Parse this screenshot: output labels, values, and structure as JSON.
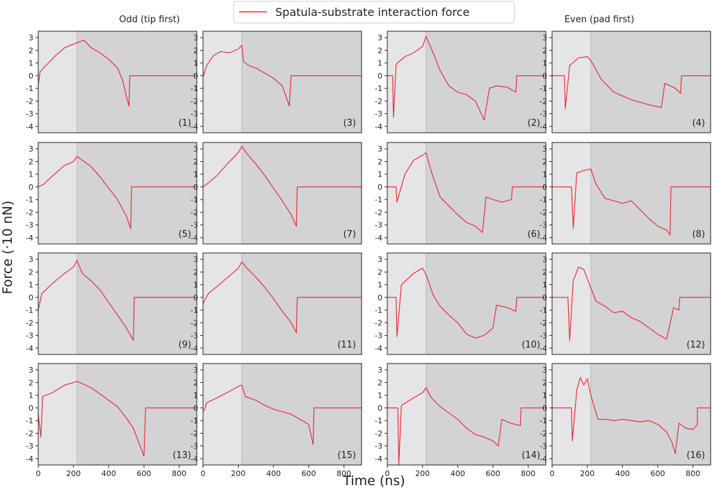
{
  "chart_data": {
    "type": "line",
    "legend": {
      "entries": [
        "Spatula-substrate interaction force"
      ],
      "placement": "top-center"
    },
    "column_titles": {
      "left": "Odd (tip first)",
      "right": "Even (pad first)"
    },
    "xlabel": "Time (ns)",
    "ylabel": "Force (·10 nN)",
    "xlim": [
      0,
      900
    ],
    "ylim": [
      -4.5,
      3.5
    ],
    "xticks": [
      0,
      200,
      400,
      600,
      800
    ],
    "yticks": [
      -4,
      -3,
      -2,
      -1,
      0,
      1,
      2,
      3
    ],
    "shaded_phase_boundary_ns": 220,
    "series_color": "#e8303a",
    "shade_light": "#e5e5e8",
    "shade_dark": "#d3d3d6",
    "panels": [
      {
        "label": "(1)",
        "end_time": 520,
        "points": [
          [
            0,
            -0.8
          ],
          [
            10,
            0.3
          ],
          [
            50,
            0.9
          ],
          [
            100,
            1.6
          ],
          [
            150,
            2.2
          ],
          [
            200,
            2.5
          ],
          [
            220,
            2.6
          ],
          [
            260,
            2.8
          ],
          [
            300,
            2.2
          ],
          [
            350,
            1.8
          ],
          [
            400,
            1.3
          ],
          [
            450,
            0.6
          ],
          [
            480,
            -0.4
          ],
          [
            500,
            -1.6
          ],
          [
            515,
            -2.4
          ],
          [
            520,
            0
          ]
        ]
      },
      {
        "label": "(3)",
        "end_time": 500,
        "points": [
          [
            0,
            -0.1
          ],
          [
            20,
            0.8
          ],
          [
            60,
            1.6
          ],
          [
            100,
            1.9
          ],
          [
            150,
            1.8
          ],
          [
            200,
            2.1
          ],
          [
            220,
            2.4
          ],
          [
            230,
            1.1
          ],
          [
            260,
            0.8
          ],
          [
            300,
            0.6
          ],
          [
            350,
            0.2
          ],
          [
            400,
            -0.2
          ],
          [
            450,
            -0.8
          ],
          [
            490,
            -2.4
          ],
          [
            500,
            0
          ]
        ]
      },
      {
        "label": "(2)",
        "end_time": 735,
        "points": [
          [
            0,
            0
          ],
          [
            30,
            0
          ],
          [
            35,
            -3.3
          ],
          [
            50,
            0.9
          ],
          [
            100,
            1.5
          ],
          [
            150,
            1.8
          ],
          [
            200,
            2.3
          ],
          [
            220,
            3.1
          ],
          [
            260,
            1.8
          ],
          [
            300,
            0.4
          ],
          [
            350,
            -0.8
          ],
          [
            400,
            -1.3
          ],
          [
            450,
            -1.5
          ],
          [
            500,
            -2.0
          ],
          [
            550,
            -3.5
          ],
          [
            580,
            -1.0
          ],
          [
            620,
            -0.8
          ],
          [
            680,
            -0.9
          ],
          [
            730,
            -1.3
          ],
          [
            735,
            0
          ]
        ]
      },
      {
        "label": "(4)",
        "end_time": 735,
        "points": [
          [
            0,
            0
          ],
          [
            70,
            0
          ],
          [
            75,
            -2.6
          ],
          [
            100,
            0.8
          ],
          [
            150,
            1.4
          ],
          [
            200,
            1.5
          ],
          [
            220,
            1.2
          ],
          [
            280,
            -0.3
          ],
          [
            350,
            -1.3
          ],
          [
            450,
            -1.9
          ],
          [
            550,
            -2.3
          ],
          [
            620,
            -2.5
          ],
          [
            640,
            -0.6
          ],
          [
            700,
            -1.0
          ],
          [
            730,
            -1.4
          ],
          [
            735,
            0
          ]
        ]
      },
      {
        "label": "(5)",
        "end_time": 530,
        "points": [
          [
            0,
            0
          ],
          [
            30,
            0.2
          ],
          [
            100,
            1.1
          ],
          [
            150,
            1.7
          ],
          [
            200,
            2.0
          ],
          [
            220,
            2.4
          ],
          [
            250,
            2.1
          ],
          [
            300,
            1.6
          ],
          [
            350,
            0.8
          ],
          [
            400,
            -0.1
          ],
          [
            450,
            -1.0
          ],
          [
            500,
            -2.3
          ],
          [
            525,
            -3.3
          ],
          [
            530,
            0
          ]
        ]
      },
      {
        "label": "(7)",
        "end_time": 535,
        "points": [
          [
            0,
            0
          ],
          [
            20,
            0.2
          ],
          [
            80,
            0.9
          ],
          [
            150,
            2.0
          ],
          [
            200,
            2.7
          ],
          [
            220,
            3.2
          ],
          [
            250,
            2.6
          ],
          [
            300,
            1.8
          ],
          [
            350,
            0.9
          ],
          [
            400,
            -0.1
          ],
          [
            450,
            -1.1
          ],
          [
            500,
            -2.2
          ],
          [
            530,
            -3.1
          ],
          [
            535,
            0
          ]
        ]
      },
      {
        "label": "(6)",
        "end_time": 710,
        "points": [
          [
            0,
            0
          ],
          [
            50,
            0
          ],
          [
            55,
            -1.2
          ],
          [
            100,
            1.0
          ],
          [
            150,
            2.1
          ],
          [
            200,
            2.5
          ],
          [
            220,
            2.7
          ],
          [
            250,
            1.2
          ],
          [
            300,
            -0.8
          ],
          [
            350,
            -1.5
          ],
          [
            400,
            -2.2
          ],
          [
            450,
            -2.8
          ],
          [
            500,
            -3.1
          ],
          [
            540,
            -3.6
          ],
          [
            560,
            -0.8
          ],
          [
            600,
            -1.0
          ],
          [
            650,
            -1.2
          ],
          [
            705,
            -1.0
          ],
          [
            710,
            0
          ]
        ]
      },
      {
        "label": "(8)",
        "end_time": 675,
        "points": [
          [
            0,
            0
          ],
          [
            110,
            0
          ],
          [
            120,
            -3.3
          ],
          [
            140,
            1.1
          ],
          [
            180,
            1.3
          ],
          [
            220,
            1.4
          ],
          [
            250,
            0.2
          ],
          [
            300,
            -0.9
          ],
          [
            350,
            -1.1
          ],
          [
            400,
            -1.3
          ],
          [
            450,
            -1.1
          ],
          [
            500,
            -1.8
          ],
          [
            550,
            -2.5
          ],
          [
            600,
            -3.1
          ],
          [
            650,
            -3.4
          ],
          [
            670,
            -3.8
          ],
          [
            675,
            0
          ]
        ]
      },
      {
        "label": "(9)",
        "end_time": 545,
        "points": [
          [
            0,
            -1.0
          ],
          [
            20,
            0.3
          ],
          [
            80,
            1.1
          ],
          [
            150,
            1.9
          ],
          [
            200,
            2.4
          ],
          [
            220,
            2.9
          ],
          [
            250,
            1.9
          ],
          [
            300,
            1.3
          ],
          [
            350,
            0.6
          ],
          [
            400,
            -0.4
          ],
          [
            450,
            -1.4
          ],
          [
            500,
            -2.4
          ],
          [
            540,
            -3.4
          ],
          [
            545,
            0
          ]
        ]
      },
      {
        "label": "(11)",
        "end_time": 535,
        "points": [
          [
            0,
            -0.5
          ],
          [
            30,
            0.3
          ],
          [
            100,
            1.1
          ],
          [
            150,
            1.7
          ],
          [
            200,
            2.3
          ],
          [
            220,
            2.8
          ],
          [
            250,
            2.3
          ],
          [
            300,
            1.6
          ],
          [
            350,
            0.8
          ],
          [
            400,
            -0.1
          ],
          [
            450,
            -1.1
          ],
          [
            500,
            -2.0
          ],
          [
            530,
            -2.8
          ],
          [
            535,
            0
          ]
        ]
      },
      {
        "label": "(10)",
        "end_time": 735,
        "points": [
          [
            0,
            0
          ],
          [
            50,
            0
          ],
          [
            55,
            -3.1
          ],
          [
            80,
            1.0
          ],
          [
            150,
            1.9
          ],
          [
            200,
            2.3
          ],
          [
            220,
            1.8
          ],
          [
            260,
            0.2
          ],
          [
            300,
            -0.7
          ],
          [
            350,
            -1.4
          ],
          [
            400,
            -2.0
          ],
          [
            450,
            -2.9
          ],
          [
            500,
            -3.2
          ],
          [
            550,
            -3.0
          ],
          [
            600,
            -2.4
          ],
          [
            620,
            -0.6
          ],
          [
            680,
            -0.8
          ],
          [
            730,
            -1.1
          ],
          [
            735,
            0
          ]
        ]
      },
      {
        "label": "(12)",
        "end_time": 725,
        "points": [
          [
            0,
            0
          ],
          [
            90,
            0
          ],
          [
            100,
            -3.4
          ],
          [
            120,
            1.3
          ],
          [
            150,
            2.4
          ],
          [
            180,
            2.2
          ],
          [
            210,
            1.1
          ],
          [
            250,
            -0.3
          ],
          [
            300,
            -0.7
          ],
          [
            350,
            -1.2
          ],
          [
            400,
            -1.1
          ],
          [
            450,
            -1.6
          ],
          [
            500,
            -1.9
          ],
          [
            550,
            -2.4
          ],
          [
            600,
            -2.9
          ],
          [
            650,
            -3.3
          ],
          [
            690,
            -0.8
          ],
          [
            720,
            -1.0
          ],
          [
            725,
            0
          ]
        ]
      },
      {
        "label": "(13)",
        "end_time": 610,
        "points": [
          [
            0,
            -0.5
          ],
          [
            15,
            -2.3
          ],
          [
            25,
            0.9
          ],
          [
            80,
            1.2
          ],
          [
            150,
            1.8
          ],
          [
            200,
            2.0
          ],
          [
            220,
            2.1
          ],
          [
            300,
            1.6
          ],
          [
            350,
            1.1
          ],
          [
            400,
            0.6
          ],
          [
            450,
            0.1
          ],
          [
            500,
            -0.8
          ],
          [
            540,
            -1.6
          ],
          [
            570,
            -2.7
          ],
          [
            600,
            -3.8
          ],
          [
            610,
            0
          ]
        ]
      },
      {
        "label": "(15)",
        "end_time": 630,
        "points": [
          [
            0,
            -0.3
          ],
          [
            10,
            -0.1
          ],
          [
            20,
            0.4
          ],
          [
            80,
            0.8
          ],
          [
            150,
            1.3
          ],
          [
            200,
            1.7
          ],
          [
            220,
            1.8
          ],
          [
            240,
            0.9
          ],
          [
            300,
            0.6
          ],
          [
            350,
            0.2
          ],
          [
            400,
            -0.1
          ],
          [
            450,
            -0.3
          ],
          [
            500,
            -0.5
          ],
          [
            550,
            -0.9
          ],
          [
            600,
            -1.3
          ],
          [
            625,
            -2.9
          ],
          [
            630,
            0
          ]
        ]
      },
      {
        "label": "(14)",
        "end_time": 760,
        "points": [
          [
            0,
            0
          ],
          [
            60,
            0
          ],
          [
            65,
            -4.5
          ],
          [
            80,
            0.2
          ],
          [
            150,
            0.8
          ],
          [
            200,
            1.2
          ],
          [
            220,
            1.6
          ],
          [
            250,
            0.8
          ],
          [
            300,
            0.1
          ],
          [
            350,
            -0.4
          ],
          [
            400,
            -0.9
          ],
          [
            450,
            -1.6
          ],
          [
            500,
            -2.1
          ],
          [
            550,
            -2.3
          ],
          [
            600,
            -2.6
          ],
          [
            630,
            -3.0
          ],
          [
            650,
            -0.9
          ],
          [
            700,
            -1.2
          ],
          [
            755,
            -1.4
          ],
          [
            760,
            0
          ]
        ]
      },
      {
        "label": "(16)",
        "end_time": 825,
        "points": [
          [
            0,
            0
          ],
          [
            110,
            0
          ],
          [
            115,
            -2.6
          ],
          [
            140,
            1.4
          ],
          [
            160,
            2.4
          ],
          [
            180,
            1.8
          ],
          [
            200,
            2.3
          ],
          [
            220,
            1.0
          ],
          [
            260,
            -0.9
          ],
          [
            300,
            -0.9
          ],
          [
            350,
            -1.0
          ],
          [
            400,
            -0.9
          ],
          [
            450,
            -1.0
          ],
          [
            500,
            -1.1
          ],
          [
            550,
            -1.0
          ],
          [
            600,
            -1.3
          ],
          [
            650,
            -1.9
          ],
          [
            680,
            -2.7
          ],
          [
            700,
            -3.6
          ],
          [
            720,
            -1.2
          ],
          [
            760,
            -1.6
          ],
          [
            800,
            -1.7
          ],
          [
            825,
            -1.3
          ]
        ]
      }
    ]
  }
}
